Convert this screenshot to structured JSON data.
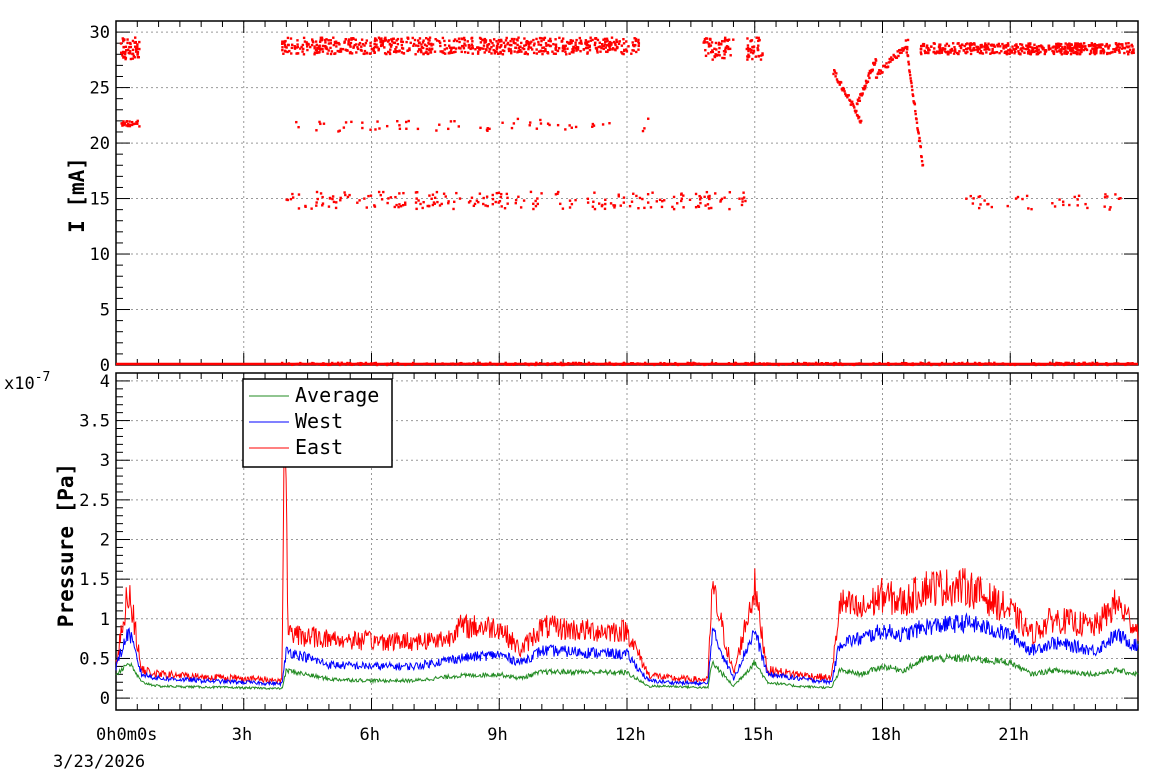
{
  "chart_data": [
    {
      "type": "scatter",
      "panel": "top",
      "ylabel": "I [mA]",
      "ylim": [
        0,
        31
      ],
      "yticks": [
        "0",
        "5",
        "10",
        "15",
        "20",
        "25",
        "30"
      ],
      "grid": true,
      "series": [
        {
          "color": "#ff0000",
          "marker": "dot",
          "clusters": [
            {
              "x": [
                0.1,
                0.55
              ],
              "y": [
                27.5,
                29.5
              ],
              "n": 60
            },
            {
              "x": [
                0.1,
                0.55
              ],
              "y": [
                21.5,
                22.0
              ],
              "n": 25
            },
            {
              "x": [
                3.9,
                12.3
              ],
              "y": [
                28.0,
                29.5
              ],
              "n": 700
            },
            {
              "x": [
                13.8,
                14.5
              ],
              "y": [
                27.5,
                29.5
              ],
              "n": 60
            },
            {
              "x": [
                14.8,
                15.2
              ],
              "y": [
                27.5,
                29.5
              ],
              "n": 40
            },
            {
              "x": [
                18.9,
                23.9
              ],
              "y": [
                28.0,
                29.0
              ],
              "n": 500
            },
            {
              "x": [
                3.9,
                12.5
              ],
              "y": [
                21.0,
                22.3
              ],
              "n": 60
            },
            {
              "x": [
                4.0,
                14.8
              ],
              "y": [
                14.0,
                15.6
              ],
              "n": 220
            },
            {
              "x": [
                19.9,
                23.9
              ],
              "y": [
                14.0,
                15.4
              ],
              "n": 40
            },
            {
              "x": [
                3.9,
                23.9
              ],
              "y": [
                0.0,
                0.2
              ],
              "n": 400
            }
          ],
          "segments": [
            {
              "x": [
                16.85,
                17.5
              ],
              "y": [
                26.5,
                22.0
              ]
            },
            {
              "x": [
                17.4,
                17.85
              ],
              "y": [
                23.5,
                27.5
              ]
            },
            {
              "x": [
                17.85,
                18.6
              ],
              "y": [
                26.0,
                29.0
              ]
            },
            {
              "x": [
                18.55,
                18.95
              ],
              "y": [
                29.0,
                18.0
              ]
            }
          ]
        }
      ]
    },
    {
      "type": "line",
      "panel": "bottom",
      "ylabel": "Pressure [Pa]",
      "yscale_label": "x10",
      "yscale_exponent": "-7",
      "ylim": [
        -0.15,
        4.1
      ],
      "yticks": [
        "0",
        "0.5",
        "1",
        "1.5",
        "2",
        "2.5",
        "3",
        "3.5",
        "4"
      ],
      "xlabel": "",
      "xlim": [
        0,
        24
      ],
      "xticks": [
        "0h0m0s",
        "3h",
        "6h",
        "9h",
        "12h",
        "15h",
        "18h",
        "21h"
      ],
      "date_label": "3/23/2026",
      "grid": true,
      "legend": {
        "position": "top-left",
        "entries": [
          "Average",
          "West",
          "East"
        ]
      },
      "series": [
        {
          "name": "Average",
          "color": "#228b22",
          "x": [
            0,
            0.3,
            0.6,
            1,
            2,
            3,
            3.9,
            4,
            5,
            6,
            7,
            8,
            9,
            9.5,
            10,
            11,
            12,
            12.5,
            13,
            13.9,
            14,
            14.5,
            15,
            15.3,
            16,
            16.8,
            17,
            17.5,
            18,
            18.5,
            19,
            20,
            21,
            21.5,
            22,
            23,
            23.5,
            24
          ],
          "y": [
            0.3,
            0.45,
            0.2,
            0.15,
            0.14,
            0.13,
            0.12,
            0.35,
            0.24,
            0.22,
            0.22,
            0.28,
            0.3,
            0.25,
            0.33,
            0.33,
            0.32,
            0.15,
            0.15,
            0.13,
            0.45,
            0.15,
            0.45,
            0.2,
            0.15,
            0.13,
            0.35,
            0.3,
            0.4,
            0.35,
            0.5,
            0.5,
            0.45,
            0.3,
            0.35,
            0.3,
            0.35,
            0.3
          ]
        },
        {
          "name": "West",
          "color": "#0000ff",
          "x": [
            0,
            0.3,
            0.6,
            1,
            2,
            3,
            3.9,
            4,
            5,
            6,
            7,
            8,
            9,
            9.5,
            10,
            11,
            12,
            12.5,
            13,
            13.9,
            14,
            14.5,
            15,
            15.3,
            16,
            16.8,
            17,
            17.5,
            18,
            18.5,
            19,
            20,
            21,
            21.5,
            22,
            23,
            23.5,
            24
          ],
          "y": [
            0.4,
            0.85,
            0.3,
            0.25,
            0.22,
            0.2,
            0.18,
            0.6,
            0.42,
            0.4,
            0.4,
            0.5,
            0.55,
            0.45,
            0.6,
            0.58,
            0.55,
            0.22,
            0.2,
            0.18,
            0.85,
            0.25,
            0.85,
            0.3,
            0.25,
            0.2,
            0.7,
            0.75,
            0.85,
            0.8,
            0.9,
            0.95,
            0.8,
            0.6,
            0.7,
            0.6,
            0.8,
            0.65
          ]
        },
        {
          "name": "East",
          "color": "#ff0000",
          "x": [
            0,
            0.3,
            0.6,
            1,
            2,
            3,
            3.9,
            3.95,
            4.05,
            5,
            6,
            7,
            7.8,
            8,
            9,
            9.5,
            10,
            11,
            12,
            12.5,
            13,
            13.9,
            14,
            14.5,
            15,
            15.3,
            16,
            16.8,
            17,
            17.5,
            18,
            18.5,
            19,
            20,
            21,
            21.5,
            22,
            23,
            23.5,
            24
          ],
          "y": [
            0.42,
            1.4,
            0.35,
            0.3,
            0.27,
            0.25,
            0.22,
            3.8,
            0.8,
            0.75,
            0.72,
            0.72,
            0.75,
            0.9,
            0.9,
            0.6,
            0.9,
            0.85,
            0.85,
            0.3,
            0.25,
            0.23,
            1.4,
            0.3,
            1.4,
            0.35,
            0.3,
            0.25,
            1.2,
            1.1,
            1.3,
            1.2,
            1.4,
            1.4,
            1.1,
            0.8,
            1.0,
            0.9,
            1.2,
            0.85
          ]
        }
      ]
    }
  ]
}
